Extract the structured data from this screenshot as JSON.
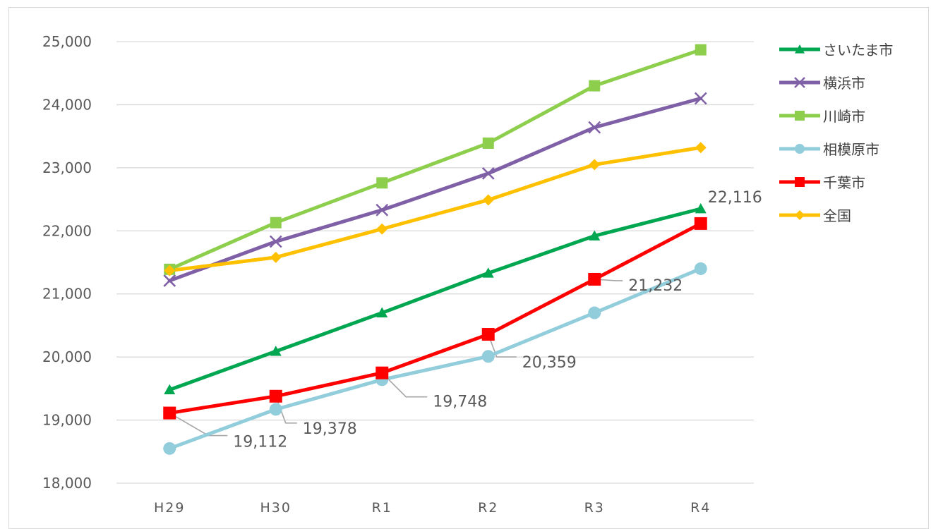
{
  "chart_data": {
    "type": "line",
    "title": "",
    "xlabel": "",
    "ylabel": "",
    "categories": [
      "H29",
      "H30",
      "R1",
      "R2",
      "R3",
      "R4"
    ],
    "ylim": [
      18000,
      25000
    ],
    "yticks": [
      18000,
      19000,
      20000,
      21000,
      22000,
      23000,
      24000,
      25000
    ],
    "ytick_labels": [
      "18,000",
      "19,000",
      "20,000",
      "21,000",
      "22,000",
      "23,000",
      "24,000",
      "25,000"
    ],
    "xtick_labels": [
      "H29",
      "H30",
      "R1",
      "R2",
      "R3",
      "R4"
    ],
    "grid": true,
    "legend_position": "right",
    "series": [
      {
        "name": "さいたま市",
        "color": "#00a650",
        "marker": "triangle",
        "values": [
          19480,
          20090,
          20700,
          21330,
          21920,
          22350
        ]
      },
      {
        "name": "横浜市",
        "color": "#7f5fa6",
        "marker": "x",
        "values": [
          21210,
          21830,
          22330,
          22910,
          23640,
          24100
        ]
      },
      {
        "name": "川崎市",
        "color": "#8dcf4d",
        "marker": "square",
        "values": [
          21390,
          22130,
          22760,
          23390,
          24300,
          24870
        ]
      },
      {
        "name": "相模原市",
        "color": "#92cddc",
        "marker": "circle",
        "values": [
          18550,
          19170,
          19640,
          20010,
          20700,
          21400
        ]
      },
      {
        "name": "千葉市",
        "color": "#ff0000",
        "marker": "square",
        "values": [
          19112,
          19378,
          19748,
          20359,
          21232,
          22116
        ]
      },
      {
        "name": "全国",
        "color": "#ffc000",
        "marker": "diamond",
        "values": [
          21370,
          21580,
          22030,
          22490,
          23050,
          23320
        ]
      }
    ],
    "annotations": [
      {
        "series": "千葉市",
        "category": "H29",
        "text": "19,112"
      },
      {
        "series": "千葉市",
        "category": "H30",
        "text": "19,378"
      },
      {
        "series": "千葉市",
        "category": "R1",
        "text": "19,748"
      },
      {
        "series": "千葉市",
        "category": "R2",
        "text": "20,359"
      },
      {
        "series": "千葉市",
        "category": "R3",
        "text": "21,232"
      },
      {
        "series": "千葉市",
        "category": "R4",
        "text": "22,116"
      }
    ]
  }
}
